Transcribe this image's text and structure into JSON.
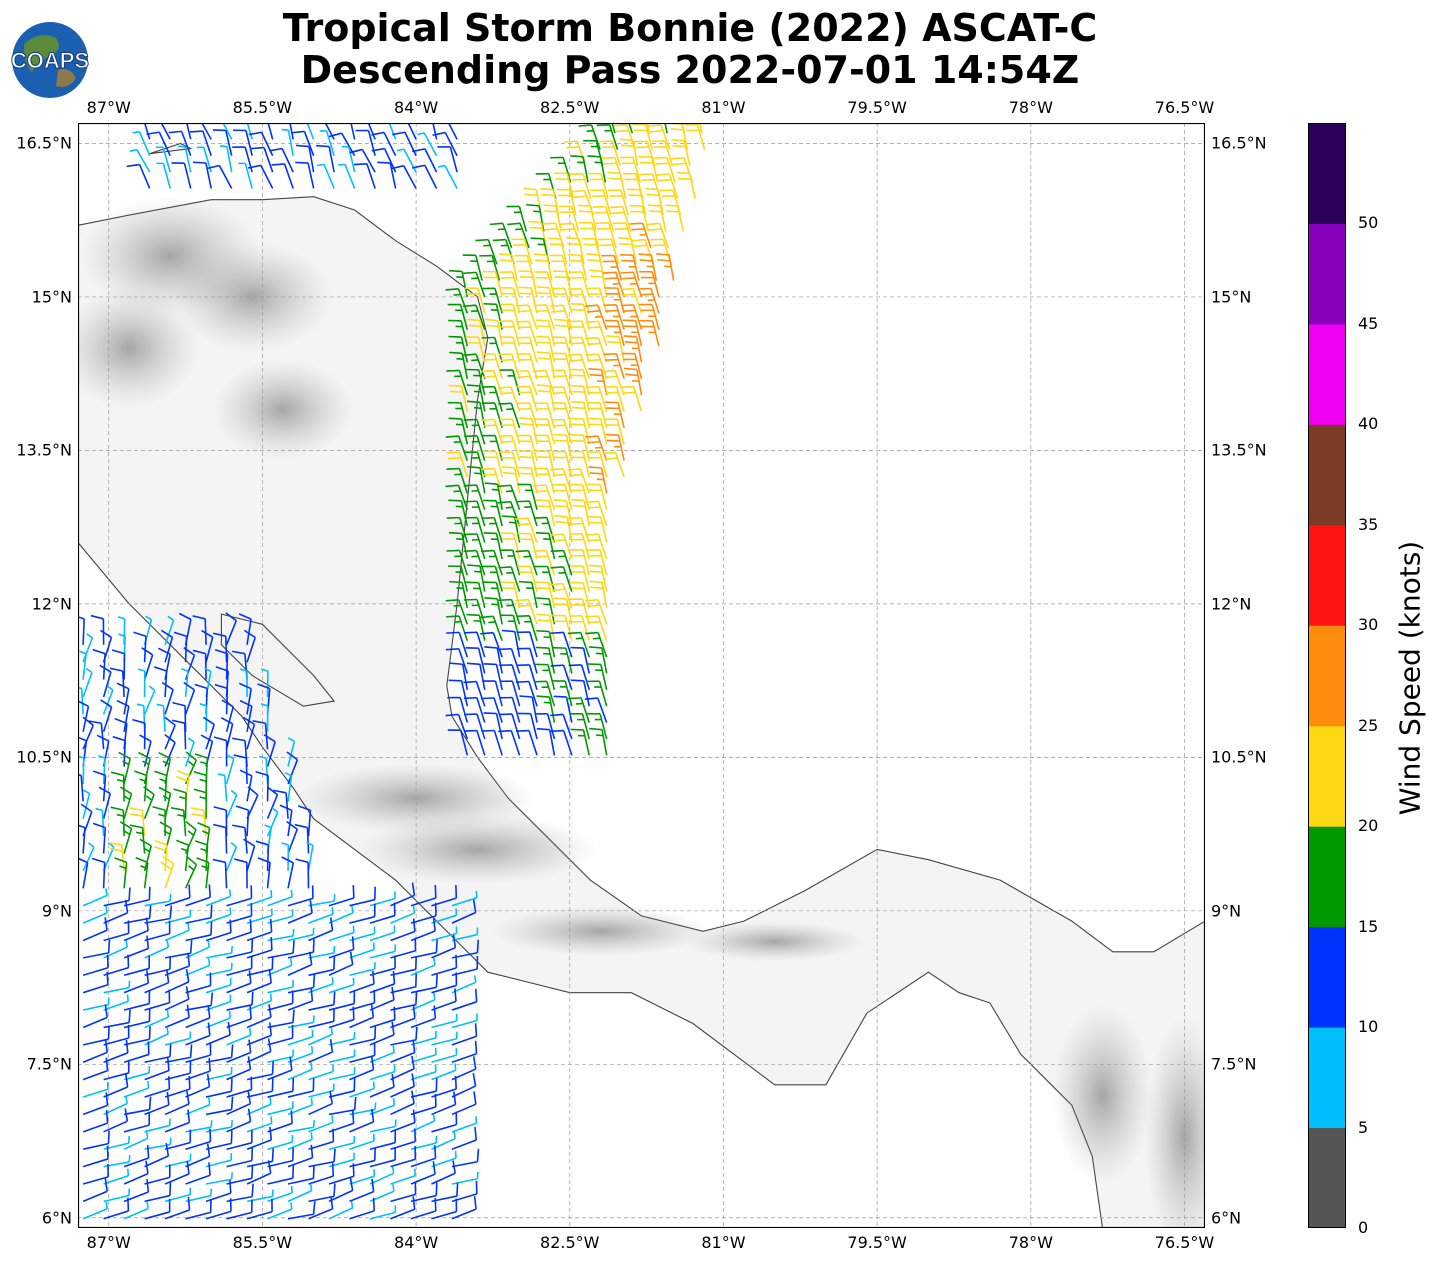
{
  "title": {
    "line1": "Tropical Storm Bonnie (2022) ASCAT-C",
    "line2": "Descending Pass 2022-07-01 14:54Z"
  },
  "logo": {
    "text": "COAPS"
  },
  "map": {
    "lon_range": [
      -87.3,
      -76.3
    ],
    "lat_range": [
      5.9,
      16.7
    ],
    "lon_ticks": [
      "87°W",
      "85.5°W",
      "84°W",
      "82.5°W",
      "81°W",
      "79.5°W",
      "78°W",
      "76.5°W"
    ],
    "lat_ticks": [
      "16.5°N",
      "15°N",
      "13.5°N",
      "12°N",
      "10.5°N",
      "9°N",
      "7.5°N",
      "6°N"
    ],
    "grid": true,
    "land_shading": "grayscale terrain",
    "coastline_color": "#444444"
  },
  "colorbar": {
    "title": "Wind Speed (knots)",
    "ticks": [
      "0",
      "5",
      "10",
      "15",
      "20",
      "25",
      "30",
      "35",
      "40",
      "45",
      "50"
    ],
    "bins": [
      {
        "range": "0-5",
        "color": "#555555"
      },
      {
        "range": "5-10",
        "color": "#00bfff"
      },
      {
        "range": "10-15",
        "color": "#0033ff"
      },
      {
        "range": "15-20",
        "color": "#009900"
      },
      {
        "range": "20-25",
        "color": "#ffd712"
      },
      {
        "range": "25-30",
        "color": "#ff8c0d"
      },
      {
        "range": "30-35",
        "color": "#ff1414"
      },
      {
        "range": "35-40",
        "color": "#7d3b26"
      },
      {
        "range": "40-45",
        "color": "#f000f0"
      },
      {
        "range": "45-50",
        "color": "#8800bb"
      },
      {
        "range": "50+",
        "color": "#2b0059"
      }
    ]
  }
}
